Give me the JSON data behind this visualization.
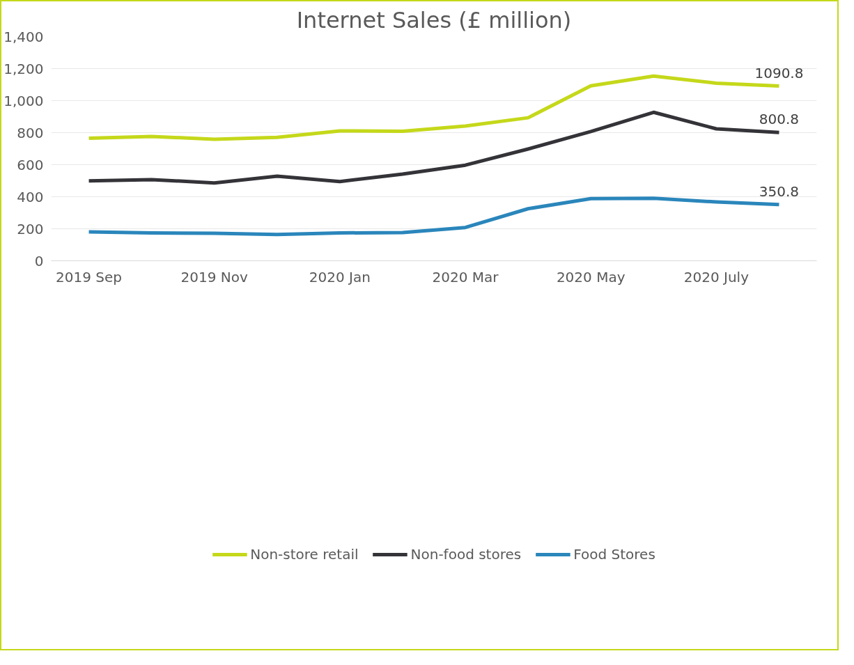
{
  "chart_data": {
    "type": "line",
    "title": "Internet Sales (£ million)",
    "categories": [
      "2019 Sep",
      null,
      "2019 Nov",
      null,
      "2020 Jan",
      null,
      "2020 Mar",
      null,
      "2020 May",
      null,
      "2020 July",
      null
    ],
    "series": [
      {
        "name": "Non-store retail",
        "color": "#c5d81a",
        "values": [
          765,
          776,
          759,
          771,
          811,
          809,
          841,
          893,
          1092,
          1153,
          1109,
          1090.8
        ],
        "value_labels": [
          null,
          null,
          null,
          null,
          null,
          null,
          null,
          null,
          null,
          null,
          null,
          "1090.8"
        ]
      },
      {
        "name": "Non-food stores",
        "color": "#333338",
        "values": [
          499,
          507,
          486,
          528,
          495,
          541,
          597,
          698,
          807,
          927,
          824,
          800.8
        ],
        "value_labels": [
          null,
          null,
          null,
          null,
          null,
          null,
          null,
          null,
          null,
          null,
          null,
          "800.8"
        ]
      },
      {
        "name": "Food Stores",
        "color": "#2a86bb",
        "values": [
          180,
          174,
          172,
          164,
          174,
          176,
          208,
          325,
          388,
          390,
          367,
          350.8
        ],
        "value_labels": [
          null,
          null,
          null,
          null,
          null,
          null,
          null,
          null,
          null,
          null,
          null,
          "350.8"
        ]
      }
    ],
    "ylim": [
      0,
      1400
    ],
    "yticks": [
      0,
      200,
      400,
      600,
      800,
      {
        "value": 1000,
        "label": "1,000"
      },
      {
        "value": 1200,
        "label": "1,200"
      },
      {
        "value": 1400,
        "label": "1,400"
      }
    ],
    "grid": "y",
    "legend": "bottom",
    "marker": "none",
    "line_style": "solid"
  }
}
